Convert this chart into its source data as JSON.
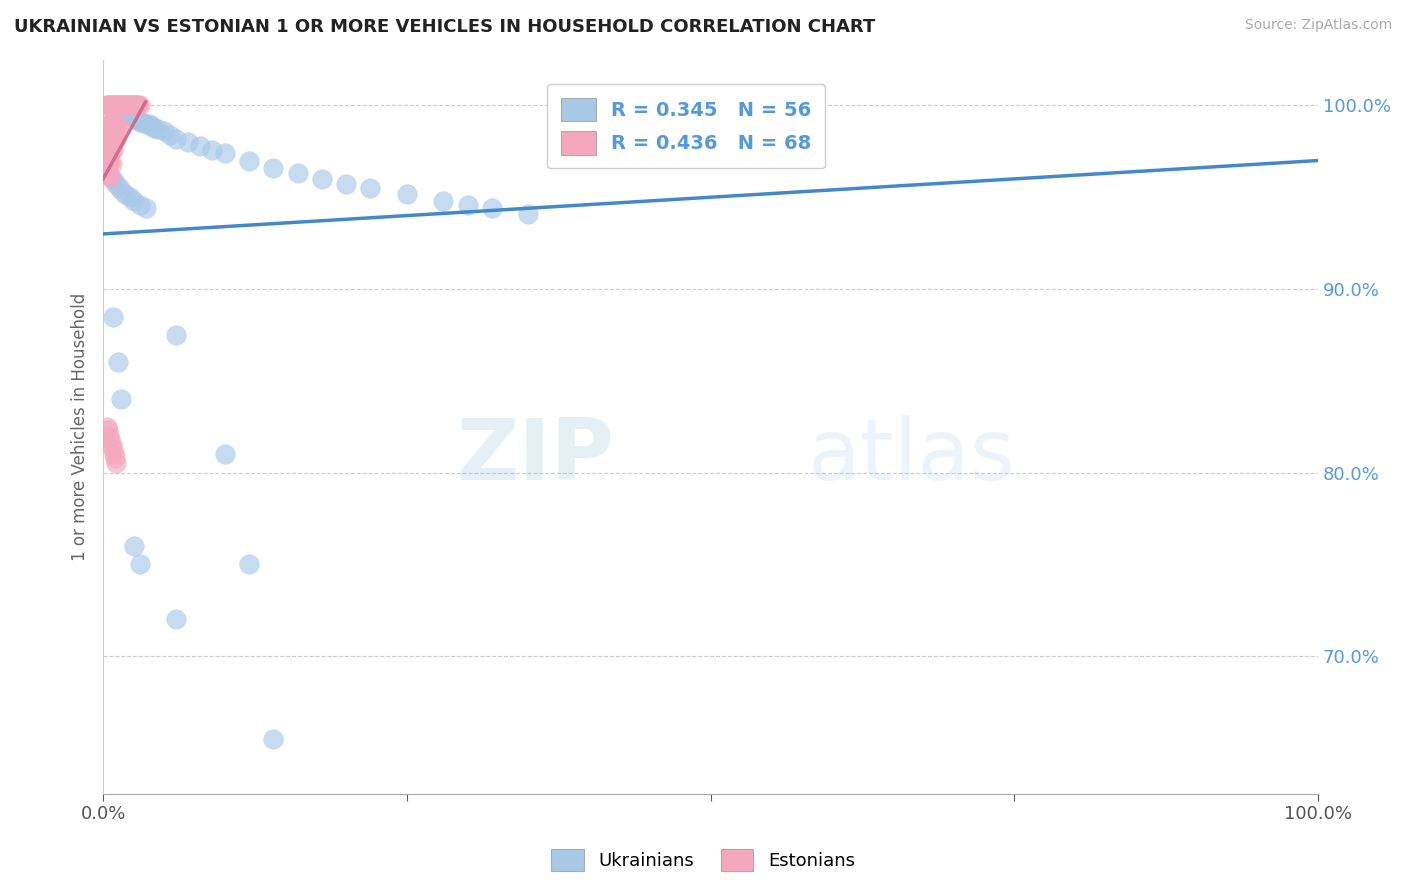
{
  "title": "UKRAINIAN VS ESTONIAN 1 OR MORE VEHICLES IN HOUSEHOLD CORRELATION CHART",
  "source": "Source: ZipAtlas.com",
  "ylabel": "1 or more Vehicles in Household",
  "xlim": [
    0.0,
    1.0
  ],
  "ylim": [
    0.625,
    1.025
  ],
  "ytick_labels_right": [
    "100.0%",
    "90.0%",
    "80.0%",
    "70.0%"
  ],
  "ytick_positions_right": [
    1.0,
    0.9,
    0.8,
    0.7
  ],
  "watermark_zip": "ZIP",
  "watermark_atlas": "atlas",
  "legend_r_ukrainian": "R = 0.345   N = 56",
  "legend_r_estonian": "R = 0.436   N = 68",
  "blue_color": "#a8c8e8",
  "pink_color": "#f4a8c0",
  "blue_line_color": "#4488cc",
  "pink_line_color": "#cc6688",
  "background_color": "#ffffff",
  "grid_color": "#cccccc",
  "right_tick_color": "#5599dd",
  "ukr_x": [
    0.005,
    0.007,
    0.009,
    0.01,
    0.011,
    0.012,
    0.013,
    0.014,
    0.015,
    0.016,
    0.017,
    0.018,
    0.019,
    0.02,
    0.022,
    0.024,
    0.025,
    0.026,
    0.028,
    0.03,
    0.032,
    0.035,
    0.038,
    0.04,
    0.042,
    0.045,
    0.05,
    0.055,
    0.06,
    0.07,
    0.08,
    0.09,
    0.1,
    0.12,
    0.14,
    0.16,
    0.18,
    0.2,
    0.22,
    0.25,
    0.28,
    0.3,
    0.32,
    0.35,
    0.008,
    0.01,
    0.012,
    0.015,
    0.018,
    0.022,
    0.025,
    0.03,
    0.035,
    0.06,
    0.1,
    0.12
  ],
  "ukr_y": [
    1.0,
    1.0,
    0.999,
    0.999,
    0.998,
    0.998,
    0.997,
    0.997,
    0.996,
    0.997,
    0.996,
    0.996,
    0.995,
    0.995,
    0.995,
    0.994,
    0.994,
    0.993,
    0.992,
    0.991,
    0.991,
    0.99,
    0.99,
    0.989,
    0.988,
    0.987,
    0.986,
    0.984,
    0.982,
    0.98,
    0.978,
    0.976,
    0.974,
    0.97,
    0.966,
    0.963,
    0.96,
    0.957,
    0.955,
    0.952,
    0.948,
    0.946,
    0.944,
    0.941,
    0.96,
    0.958,
    0.956,
    0.954,
    0.952,
    0.95,
    0.948,
    0.946,
    0.944,
    0.875,
    0.81,
    0.75
  ],
  "est_x": [
    0.003,
    0.004,
    0.005,
    0.006,
    0.007,
    0.008,
    0.009,
    0.01,
    0.011,
    0.012,
    0.013,
    0.014,
    0.015,
    0.016,
    0.017,
    0.018,
    0.019,
    0.02,
    0.021,
    0.022,
    0.023,
    0.024,
    0.025,
    0.026,
    0.027,
    0.028,
    0.029,
    0.03,
    0.004,
    0.005,
    0.006,
    0.007,
    0.008,
    0.009,
    0.01,
    0.011,
    0.012,
    0.013,
    0.005,
    0.006,
    0.007,
    0.008,
    0.009,
    0.01,
    0.011,
    0.004,
    0.005,
    0.006,
    0.007,
    0.008,
    0.003,
    0.004,
    0.005,
    0.006,
    0.007,
    0.003,
    0.004,
    0.005,
    0.006,
    0.003,
    0.004,
    0.005,
    0.006,
    0.007,
    0.008,
    0.009,
    0.01,
    0.011
  ],
  "est_y": [
    1.0,
    1.0,
    1.0,
    1.0,
    1.0,
    1.0,
    1.0,
    1.0,
    1.0,
    1.0,
    1.0,
    1.0,
    1.0,
    1.0,
    1.0,
    1.0,
    1.0,
    1.0,
    1.0,
    1.0,
    1.0,
    1.0,
    1.0,
    1.0,
    1.0,
    1.0,
    1.0,
    1.0,
    0.99,
    0.99,
    0.99,
    0.99,
    0.99,
    0.989,
    0.989,
    0.989,
    0.989,
    0.989,
    0.985,
    0.985,
    0.984,
    0.984,
    0.983,
    0.983,
    0.982,
    0.978,
    0.977,
    0.977,
    0.976,
    0.976,
    0.972,
    0.971,
    0.97,
    0.969,
    0.968,
    0.964,
    0.963,
    0.962,
    0.961,
    0.825,
    0.823,
    0.82,
    0.818,
    0.815,
    0.813,
    0.81,
    0.808,
    0.805
  ],
  "ukr_outliers_x": [
    0.008,
    0.012,
    0.015,
    0.025,
    0.03,
    0.06,
    0.14
  ],
  "ukr_outliers_y": [
    0.885,
    0.86,
    0.84,
    0.76,
    0.75,
    0.72,
    0.655
  ]
}
